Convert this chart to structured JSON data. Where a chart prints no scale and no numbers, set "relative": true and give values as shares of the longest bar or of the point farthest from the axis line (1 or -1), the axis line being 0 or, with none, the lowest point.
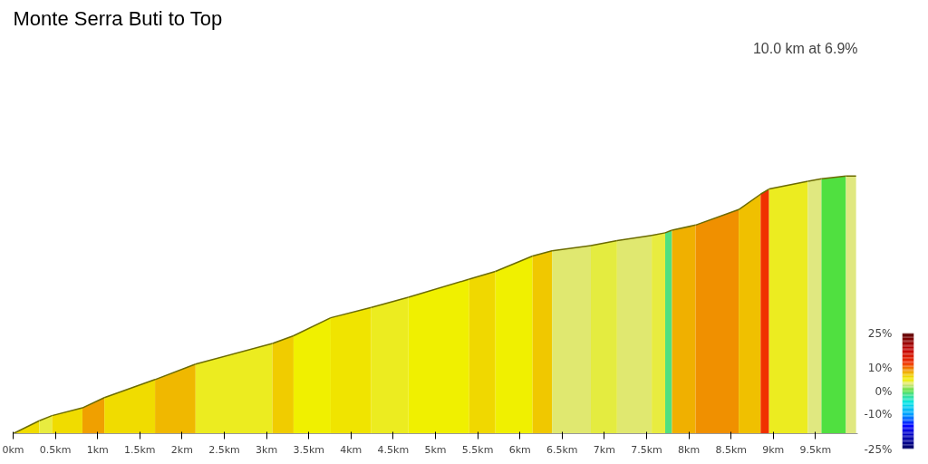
{
  "chart_data": {
    "type": "area",
    "title": "Monte Serra Buti to Top",
    "subtitle": "10.0 km at 6.9%",
    "relative": true,
    "series": [
      {
        "x": [
          0,
          0.31
        ],
        "values": [
          0,
          0.05
        ],
        "color": "#f0dc00"
      },
      {
        "x": [
          0.31,
          0.46
        ],
        "values": [
          0.05,
          0.07
        ],
        "color": "#e8ec40"
      },
      {
        "x": [
          0.46,
          0.82
        ],
        "values": [
          0.07,
          0.1
        ],
        "color": "#f0dc00"
      },
      {
        "x": [
          0.82,
          1.08
        ],
        "values": [
          0.1,
          0.14
        ],
        "color": "#f0a000"
      },
      {
        "x": [
          1.08,
          1.68
        ],
        "values": [
          0.14,
          0.21
        ],
        "color": "#f0dc00"
      },
      {
        "x": [
          1.68,
          2.16
        ],
        "values": [
          0.21,
          0.27
        ],
        "color": "#f0b800"
      },
      {
        "x": [
          2.16,
          3.07
        ],
        "values": [
          0.27,
          0.35
        ],
        "color": "#ecec20"
      },
      {
        "x": [
          3.07,
          3.32
        ],
        "values": [
          0.35,
          0.38
        ],
        "color": "#f0cc00"
      },
      {
        "x": [
          3.32,
          3.76
        ],
        "values": [
          0.38,
          0.45
        ],
        "color": "#f0f000"
      },
      {
        "x": [
          3.76,
          4.24
        ],
        "values": [
          0.45,
          0.49
        ],
        "color": "#f0e400"
      },
      {
        "x": [
          4.24,
          4.68
        ],
        "values": [
          0.49,
          0.53
        ],
        "color": "#ecec20"
      },
      {
        "x": [
          4.68,
          5.4
        ],
        "values": [
          0.53,
          0.6
        ],
        "color": "#f0f000"
      },
      {
        "x": [
          5.4,
          5.71
        ],
        "values": [
          0.6,
          0.63
        ],
        "color": "#f0d800"
      },
      {
        "x": [
          5.71,
          6.15
        ],
        "values": [
          0.63,
          0.69
        ],
        "color": "#f0f000"
      },
      {
        "x": [
          6.15,
          6.38
        ],
        "values": [
          0.69,
          0.71
        ],
        "color": "#f0c800"
      },
      {
        "x": [
          6.38,
          6.84
        ],
        "values": [
          0.71,
          0.73
        ],
        "color": "#e0e870"
      },
      {
        "x": [
          6.84,
          7.15
        ],
        "values": [
          0.73,
          0.75
        ],
        "color": "#e4ec40"
      },
      {
        "x": [
          7.15,
          7.56
        ],
        "values": [
          0.75,
          0.77
        ],
        "color": "#e0e870"
      },
      {
        "x": [
          7.56,
          7.72
        ],
        "values": [
          0.77,
          0.78
        ],
        "color": "#e8ec40"
      },
      {
        "x": [
          7.72,
          7.8
        ],
        "values": [
          0.78,
          0.79
        ],
        "color": "#50e080"
      },
      {
        "x": [
          7.8,
          8.08
        ],
        "values": [
          0.79,
          0.81
        ],
        "color": "#f0b000"
      },
      {
        "x": [
          8.08,
          8.59
        ],
        "values": [
          0.81,
          0.87
        ],
        "color": "#f09000"
      },
      {
        "x": [
          8.59,
          8.85
        ],
        "values": [
          0.87,
          0.93
        ],
        "color": "#f0c000"
      },
      {
        "x": [
          8.85,
          8.95
        ],
        "values": [
          0.93,
          0.95
        ],
        "color": "#f03000"
      },
      {
        "x": [
          8.95,
          9.41
        ],
        "values": [
          0.95,
          0.98
        ],
        "color": "#ecec20"
      },
      {
        "x": [
          9.41,
          9.57
        ],
        "values": [
          0.98,
          0.99
        ],
        "color": "#e0e880"
      },
      {
        "x": [
          9.57,
          9.86
        ],
        "values": [
          0.99,
          1.0
        ],
        "color": "#50e040"
      },
      {
        "x": [
          9.86,
          9.98
        ],
        "values": [
          1.0,
          1.0
        ],
        "color": "#e0e880"
      }
    ],
    "clim": [
      -25,
      25
    ],
    "cticks": [
      {
        "value": 25,
        "label": "25%"
      },
      {
        "value": 10,
        "label": "10%"
      },
      {
        "value": 0,
        "label": "0%"
      },
      {
        "value": -10,
        "label": "-10%"
      },
      {
        "value": -25,
        "label": "-25%"
      }
    ],
    "xlim": [
      0,
      10
    ],
    "xticks": [
      {
        "value": 0,
        "label": "0km"
      },
      {
        "value": 0.5,
        "label": "0.5km"
      },
      {
        "value": 1,
        "label": "1km"
      },
      {
        "value": 1.5,
        "label": "1.5km"
      },
      {
        "value": 2,
        "label": "2km"
      },
      {
        "value": 2.5,
        "label": "2.5km"
      },
      {
        "value": 3,
        "label": "3km"
      },
      {
        "value": 3.5,
        "label": "3.5km"
      },
      {
        "value": 4,
        "label": "4km"
      },
      {
        "value": 4.5,
        "label": "4.5km"
      },
      {
        "value": 5,
        "label": "5km"
      },
      {
        "value": 5.5,
        "label": "5.5km"
      },
      {
        "value": 6,
        "label": "6km"
      },
      {
        "value": 6.5,
        "label": "6.5km"
      },
      {
        "value": 7,
        "label": "7km"
      },
      {
        "value": 7.5,
        "label": "7.5km"
      },
      {
        "value": 8,
        "label": "8km"
      },
      {
        "value": 8.5,
        "label": "8.5km"
      },
      {
        "value": 9,
        "label": "9km"
      },
      {
        "value": 9.5,
        "label": "9.5km"
      }
    ],
    "grid": false
  }
}
